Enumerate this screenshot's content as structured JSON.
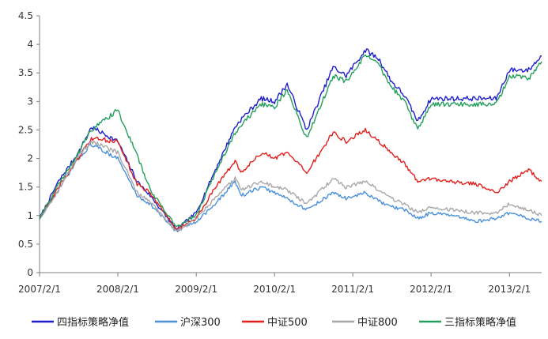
{
  "chart_data": {
    "type": "line",
    "title": "",
    "xlabel": "",
    "ylabel": "",
    "ylim": [
      0,
      4.5
    ],
    "yticks": [
      "0",
      "0.5",
      "1",
      "1.5",
      "2",
      "2.5",
      "3",
      "3.5",
      "4",
      "4.5"
    ],
    "xticks": [
      "2007/2/1",
      "2008/2/1",
      "2009/2/1",
      "2010/2/1",
      "2011/2/1",
      "2012/2/1",
      "2013/2/1"
    ],
    "x": [
      "2007/2/1",
      "2007/5/1",
      "2007/8/1",
      "2007/10/1",
      "2008/2/1",
      "2008/5/1",
      "2008/7/1",
      "2008/11/1",
      "2009/2/1",
      "2009/5/1",
      "2009/8/1",
      "2009/9/1",
      "2009/12/1",
      "2010/2/1",
      "2010/4/1",
      "2010/7/1",
      "2010/11/1",
      "2011/1/1",
      "2011/4/1",
      "2011/6/1",
      "2011/8/1",
      "2011/10/1",
      "2011/12/1",
      "2012/2/1",
      "2012/5/1",
      "2012/9/1",
      "2012/12/1",
      "2013/2/1",
      "2013/5/1",
      "2013/7/1"
    ],
    "grid": false,
    "legend_position": "bottom",
    "series": [
      {
        "name": "四指标策略净值",
        "color": "#1f1fcc",
        "values": [
          0.95,
          1.6,
          2.1,
          2.55,
          2.3,
          1.6,
          1.35,
          0.75,
          1.05,
          1.8,
          2.55,
          2.7,
          3.05,
          3.0,
          3.3,
          2.5,
          3.6,
          3.45,
          3.9,
          3.75,
          3.35,
          3.1,
          2.65,
          3.05,
          3.05,
          3.05,
          3.05,
          3.55,
          3.55,
          3.8
        ]
      },
      {
        "name": "沪深300",
        "color": "#4a90d9",
        "values": [
          0.95,
          1.45,
          2.0,
          2.25,
          2.0,
          1.35,
          1.2,
          0.72,
          0.9,
          1.2,
          1.6,
          1.35,
          1.5,
          1.4,
          1.3,
          1.1,
          1.4,
          1.3,
          1.4,
          1.25,
          1.15,
          1.1,
          0.95,
          1.05,
          1.0,
          0.9,
          0.95,
          1.05,
          0.95,
          0.9
        ]
      },
      {
        "name": "中证500",
        "color": "#e0201e",
        "values": [
          0.95,
          1.5,
          2.0,
          2.35,
          2.3,
          1.55,
          1.4,
          0.75,
          0.95,
          1.5,
          1.95,
          1.75,
          2.1,
          2.0,
          2.1,
          1.75,
          2.45,
          2.3,
          2.5,
          2.3,
          2.1,
          1.9,
          1.6,
          1.65,
          1.6,
          1.55,
          1.4,
          1.6,
          1.8,
          1.6
        ]
      },
      {
        "name": "中证800",
        "color": "#a8a8a8",
        "values": [
          0.95,
          1.45,
          2.05,
          2.3,
          2.1,
          1.4,
          1.25,
          0.72,
          0.95,
          1.3,
          1.65,
          1.45,
          1.6,
          1.5,
          1.45,
          1.2,
          1.65,
          1.5,
          1.6,
          1.45,
          1.3,
          1.2,
          1.05,
          1.15,
          1.1,
          1.05,
          1.05,
          1.2,
          1.1,
          1.0
        ]
      },
      {
        "name": "三指标策略净值",
        "color": "#22a05a",
        "values": [
          0.95,
          1.55,
          2.1,
          2.5,
          2.85,
          2.05,
          1.45,
          0.8,
          1.0,
          1.75,
          2.45,
          2.6,
          2.95,
          2.9,
          3.2,
          2.35,
          3.45,
          3.35,
          3.8,
          3.65,
          3.25,
          3.0,
          2.5,
          2.95,
          2.95,
          2.95,
          2.95,
          3.45,
          3.4,
          3.7
        ]
      }
    ]
  }
}
